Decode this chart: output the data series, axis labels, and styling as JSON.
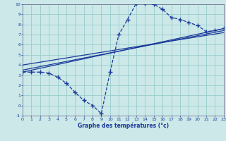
{
  "xlabel": "Graphe des températures (°c)",
  "bg_color": "#cce8e8",
  "grid_color": "#99cccc",
  "line_color": "#1a3a9a",
  "xmin": 0,
  "xmax": 23,
  "ymin": -1,
  "ymax": 10,
  "xticks": [
    0,
    1,
    2,
    3,
    4,
    5,
    6,
    7,
    8,
    9,
    10,
    11,
    12,
    13,
    14,
    15,
    16,
    17,
    18,
    19,
    20,
    21,
    22,
    23
  ],
  "yticks": [
    -1,
    0,
    1,
    2,
    3,
    4,
    5,
    6,
    7,
    8,
    9,
    10
  ],
  "curve_x": [
    0,
    1,
    2,
    3,
    4,
    5,
    6,
    7,
    8,
    9,
    10,
    11,
    12,
    13,
    14,
    15,
    16,
    17,
    18,
    19,
    20,
    21,
    22,
    23
  ],
  "curve_y": [
    3.3,
    3.3,
    3.3,
    3.2,
    2.8,
    2.2,
    1.3,
    0.5,
    0.0,
    -0.8,
    3.3,
    7.0,
    8.5,
    10.1,
    10.1,
    10.0,
    9.5,
    8.7,
    8.5,
    8.2,
    7.9,
    7.3,
    7.4,
    7.6
  ],
  "line1_x": [
    0,
    23
  ],
  "line1_y": [
    3.3,
    7.6
  ],
  "line2_x": [
    0,
    23
  ],
  "line2_y": [
    3.5,
    7.4
  ],
  "line3_x": [
    0,
    23
  ],
  "line3_y": [
    4.0,
    7.2
  ]
}
